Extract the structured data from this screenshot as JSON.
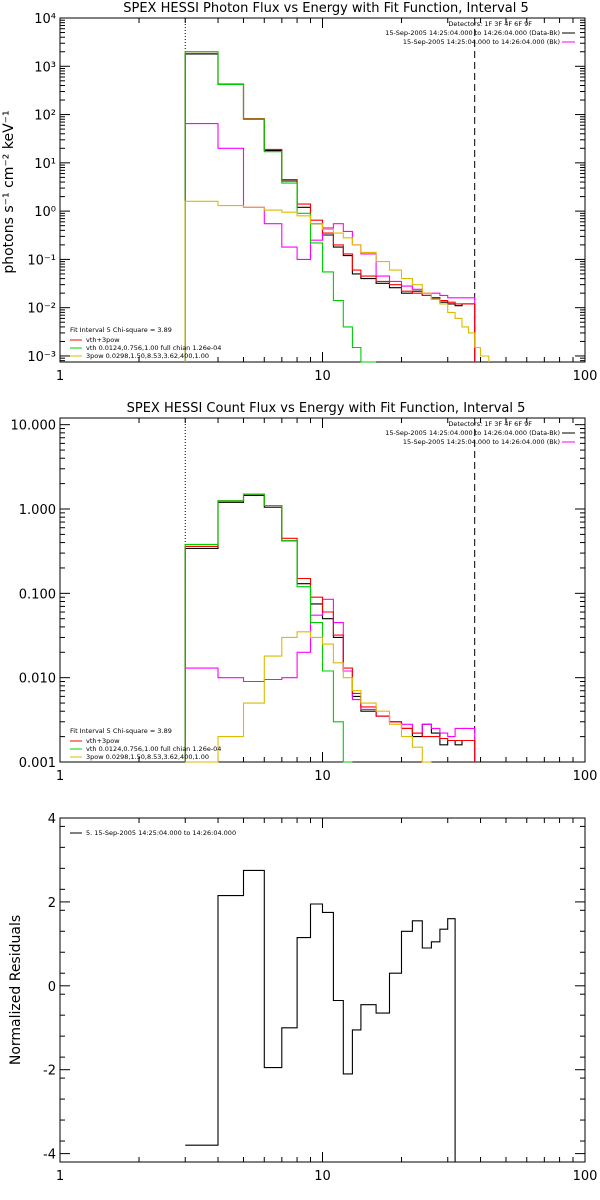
{
  "chart_data": [
    {
      "type": "line",
      "title": "SPEX HESSI Photon Flux vs Energy with Fit Function, Interval 5",
      "ylabel": "photons s⁻¹ cm⁻² keV⁻¹",
      "xscale": "log",
      "yscale": "log",
      "xlim": [
        1,
        100
      ],
      "ylim": [
        0.00075,
        10000
      ],
      "xtick_labels": [
        "1",
        "10",
        "100"
      ],
      "ytick_values": [
        0.001,
        0.01,
        0.1,
        1,
        10,
        100,
        1000,
        10000
      ],
      "ytick_labels": [
        "10⁻³",
        "10⁻²",
        "10⁻¹",
        "10⁰",
        "10¹",
        "10²",
        "10³",
        "10⁴"
      ],
      "vlines": [
        {
          "x": 3.0,
          "style": "dotted"
        },
        {
          "x": 38.0,
          "style": "dashed"
        }
      ],
      "legend_top": {
        "line1": "Detectors: 1F 3F 4F 6F 9F",
        "line2": "15-Sep-2005 14:25:04.000 to 14:26:04.000 (Data-Bk)",
        "line3": "15-Sep-2005 14:25:04.000 to 14:26:04.000 (Bk)"
      },
      "fit_legend": {
        "header": "Fit Interval  5     Chi-square = 3.89",
        "items": [
          {
            "label": "vth+3pow",
            "color": "#ff0000"
          },
          {
            "label": "vth 0.0124,0.756,1.00  full chian 1.26e-04",
            "color": "#00cc00"
          },
          {
            "label": "3pow 0.0298,1.50,8.53,3.62,400,1.00",
            "color": "#ddbb00"
          }
        ]
      },
      "edges": [
        3.0,
        4.0,
        5.0,
        6.0,
        7.0,
        8.0,
        9.0,
        10.0,
        11.0,
        12.0,
        13.0,
        14.0,
        16.0,
        18.0,
        20.0,
        22.0,
        24.0,
        26.0,
        28.0,
        30.0,
        32.0,
        34.0,
        36.0,
        38.0,
        40.0,
        43.0
      ],
      "series": [
        {
          "name": "Data-Bk",
          "color": "#000000",
          "values": [
            1800,
            420,
            80,
            18,
            4.2,
            1.2,
            0.55,
            0.32,
            0.18,
            0.12,
            0.05,
            0.04,
            0.032,
            0.026,
            0.02,
            0.022,
            0.018,
            0.016,
            0.013,
            0.012,
            0.011,
            0.012,
            0.012,
            null,
            null
          ]
        },
        {
          "name": "Bk",
          "color": "#ff00ff",
          "values": [
            65,
            20,
            1.2,
            0.55,
            0.18,
            0.1,
            0.25,
            0.45,
            0.55,
            0.38,
            0.2,
            0.13,
            0.045,
            0.035,
            0.028,
            0.024,
            0.02,
            0.02,
            0.018,
            0.016,
            0.016,
            0.016,
            0.016,
            null,
            null
          ]
        },
        {
          "name": "vth+3pow",
          "color": "#ff0000",
          "values": [
            1850,
            430,
            82,
            19,
            4.5,
            1.4,
            0.65,
            0.35,
            0.2,
            0.13,
            0.06,
            0.045,
            0.035,
            0.03,
            0.022,
            0.02,
            0.018,
            0.015,
            0.014,
            0.013,
            0.012,
            0.012,
            0.012,
            null,
            null
          ]
        },
        {
          "name": "vth",
          "color": "#00cc00",
          "values": [
            2000,
            420,
            80,
            17,
            3.8,
            0.9,
            0.22,
            0.055,
            0.014,
            0.004,
            0.0015,
            0.0006,
            null,
            null,
            null,
            null,
            null,
            null,
            null,
            null,
            null,
            null,
            null,
            null,
            null
          ]
        },
        {
          "name": "3pow",
          "color": "#ddbb00",
          "values": [
            1.6,
            1.3,
            1.2,
            1.05,
            0.95,
            0.8,
            0.55,
            0.42,
            0.35,
            0.28,
            0.2,
            0.14,
            0.09,
            0.06,
            0.04,
            0.03,
            0.02,
            0.015,
            0.012,
            0.008,
            0.006,
            0.004,
            0.003,
            0.0015,
            0.001
          ]
        }
      ]
    },
    {
      "type": "line",
      "title": "SPEX HESSI Count Flux vs Energy with Fit Function, Interval 5",
      "xscale": "log",
      "yscale": "log",
      "xlim": [
        1,
        100
      ],
      "ylim": [
        0.001,
        12.0
      ],
      "xtick_labels": [
        "1",
        "10",
        "100"
      ],
      "ytick_values": [
        0.001,
        0.01,
        0.1,
        1,
        10
      ],
      "ytick_labels": [
        "0.001",
        "0.010",
        "0.100",
        "1.000",
        "10.000"
      ],
      "vlines": [
        {
          "x": 3.0,
          "style": "dotted"
        },
        {
          "x": 38.0,
          "style": "dashed"
        }
      ],
      "legend_top": {
        "line1": "Detectors: 1F 3F 4F 6F 9F",
        "line2": "15-Sep-2005 14:25:04.000 to 14:26:04.000 (Data-Bk)",
        "line3": "15-Sep-2005 14:25:04.000 to 14:26:04.000 (Bk)"
      },
      "fit_legend": {
        "header": "Fit Interval  5     Chi-square = 3.89",
        "items": [
          {
            "label": "vth+3pow",
            "color": "#ff0000"
          },
          {
            "label": "vth 0.0124,0.756,1.00  full chian 1.26e-04",
            "color": "#00cc00"
          },
          {
            "label": "3pow 0.0298,1.50,8.53,3.62,400,1.00",
            "color": "#ddbb00"
          }
        ]
      },
      "edges": [
        3.0,
        4.0,
        5.0,
        6.0,
        7.0,
        8.0,
        9.0,
        10.0,
        11.0,
        12.0,
        13.0,
        14.0,
        16.0,
        18.0,
        20.0,
        22.0,
        24.0,
        26.0,
        28.0,
        30.0,
        32.0,
        34.0,
        36.0,
        38.0,
        40.0
      ],
      "series": [
        {
          "name": "Data-Bk",
          "color": "#000000",
          "values": [
            0.34,
            1.2,
            1.45,
            1.05,
            0.42,
            0.13,
            0.075,
            0.05,
            0.03,
            0.012,
            0.006,
            0.004,
            0.0035,
            0.003,
            0.0025,
            0.002,
            0.0028,
            0.0022,
            0.0016,
            0.0018,
            0.0016,
            0.0018,
            0.0018,
            null
          ]
        },
        {
          "name": "Bk",
          "color": "#ff00ff",
          "values": [
            0.013,
            0.01,
            0.009,
            0.0095,
            0.01,
            0.02,
            0.055,
            0.085,
            0.045,
            0.012,
            0.0055,
            0.0042,
            0.0035,
            0.003,
            0.0028,
            0.0022,
            0.0028,
            0.0025,
            0.0022,
            0.002,
            0.0025,
            0.0025,
            0.0025,
            null
          ]
        },
        {
          "name": "vth+3pow",
          "color": "#ff0000",
          "values": [
            0.36,
            1.25,
            1.5,
            1.1,
            0.45,
            0.15,
            0.09,
            0.06,
            0.032,
            0.013,
            0.0065,
            0.0045,
            0.0035,
            0.003,
            0.0025,
            0.0022,
            0.002,
            0.002,
            0.0019,
            0.0018,
            0.0018,
            0.0018,
            0.0018,
            null
          ]
        },
        {
          "name": "vth",
          "color": "#00cc00",
          "values": [
            0.38,
            1.25,
            1.5,
            1.1,
            0.42,
            0.12,
            0.045,
            0.012,
            0.003,
            0.001,
            null,
            null,
            null,
            null,
            null,
            null,
            null,
            null,
            null,
            null,
            null,
            null,
            null,
            null
          ]
        },
        {
          "name": "3pow",
          "color": "#ddbb00",
          "values": [
            0.001,
            0.002,
            0.005,
            0.018,
            0.03,
            0.035,
            0.03,
            0.025,
            0.015,
            0.01,
            0.007,
            0.005,
            0.004,
            0.0028,
            0.002,
            0.0015,
            0.001,
            null,
            null,
            null,
            null,
            null,
            null,
            null
          ]
        }
      ]
    },
    {
      "type": "line",
      "title": "",
      "ylabel": "Normalized Residuals",
      "xscale": "log",
      "yscale": "linear",
      "xlim": [
        1,
        100
      ],
      "ylim": [
        -4.2,
        4.0
      ],
      "xtick_labels": [
        "1",
        "10",
        "100"
      ],
      "ytick_values": [
        -4,
        -2,
        0,
        2,
        4
      ],
      "ytick_labels": [
        "-4",
        "-2",
        "0",
        "2",
        "4"
      ],
      "legend": {
        "label": "5. 15-Sep-2005 14:25:04.000 to 14:26:04.000"
      },
      "edges": [
        3.0,
        4.0,
        5.0,
        6.0,
        7.0,
        8.0,
        9.0,
        10.0,
        11.0,
        12.0,
        13.0,
        14.0,
        16.0,
        18.0,
        20.0,
        22.0,
        24.0,
        26.0,
        28.0,
        30.0,
        32.0,
        34.0,
        36.0,
        38.0
      ],
      "series": [
        {
          "name": "Residuals",
          "color": "#000000",
          "values": [
            -3.8,
            2.15,
            2.75,
            -1.95,
            -1.0,
            1.15,
            1.95,
            1.75,
            -0.35,
            -2.1,
            -1.05,
            -0.45,
            -0.65,
            0.3,
            1.3,
            1.55,
            0.9,
            1.05,
            1.35,
            1.6,
            -4.2,
            null,
            null
          ]
        }
      ]
    }
  ]
}
